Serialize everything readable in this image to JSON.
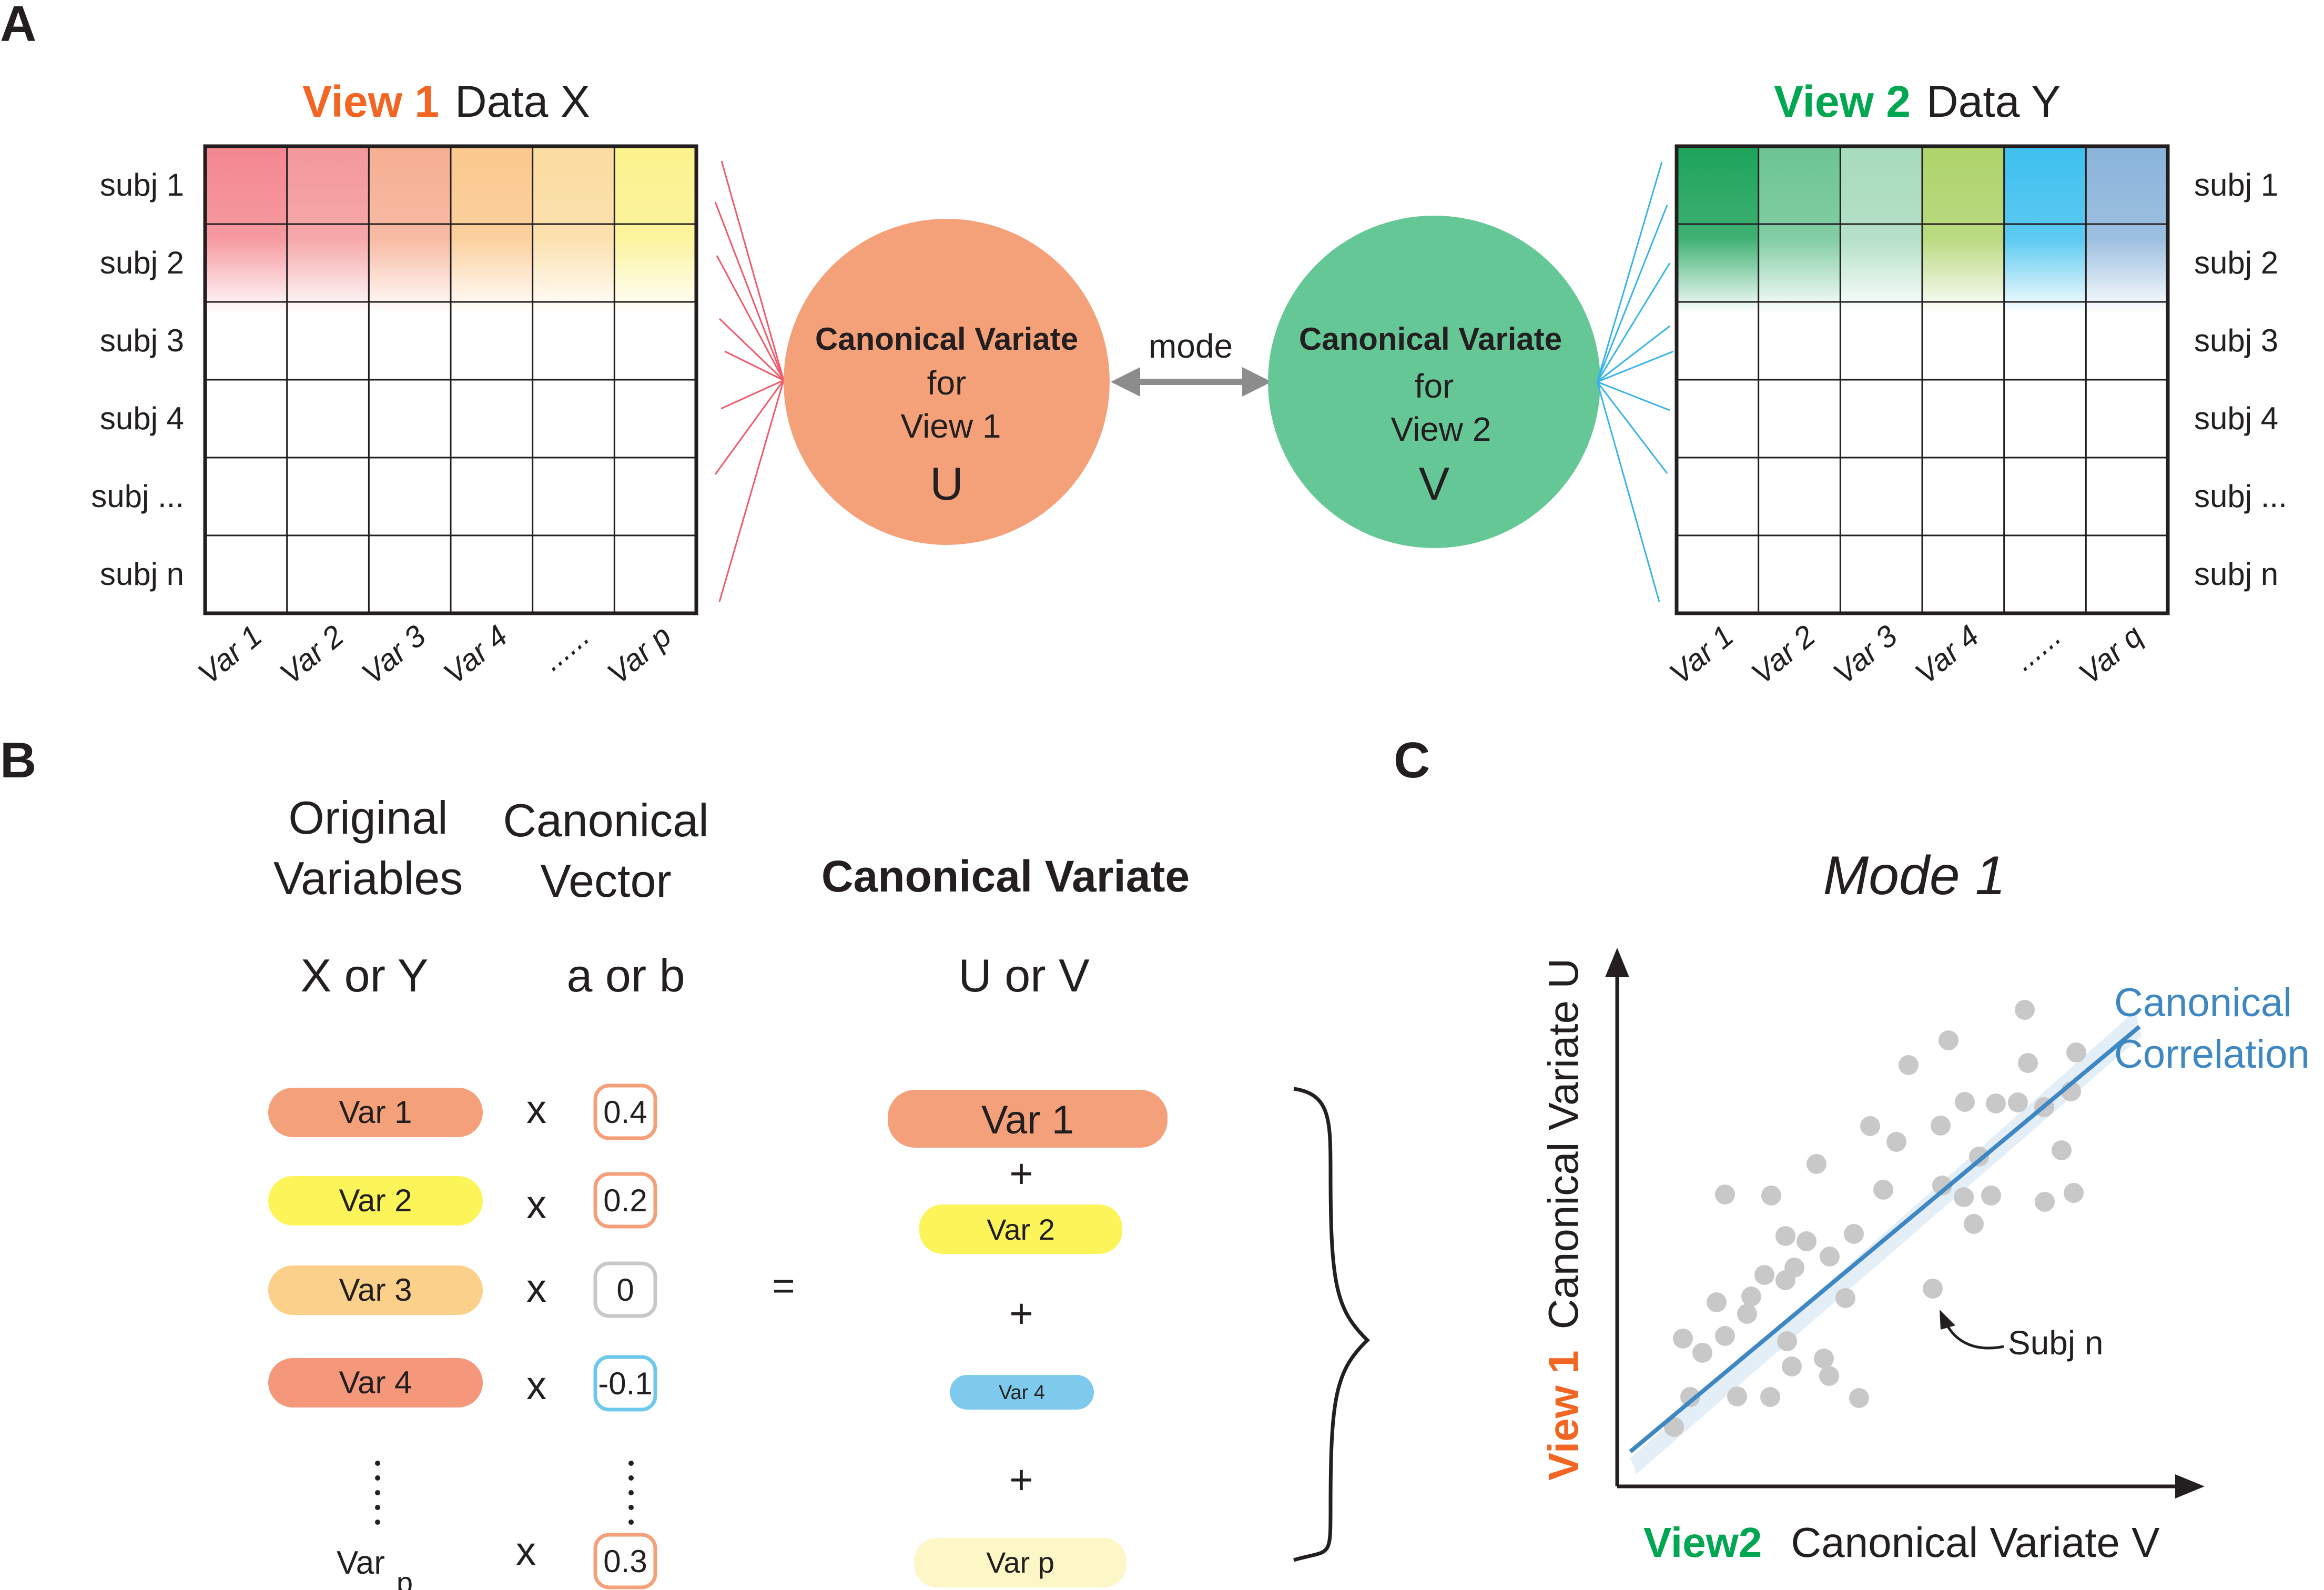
{
  "panels": {
    "a": "A",
    "b": "B",
    "c": "C"
  },
  "colors": {
    "view1": "#f26522",
    "view2": "#00a651",
    "circle_u": "#f4a17a",
    "circle_v": "#66c796",
    "pill_var1": "#f4a07a",
    "pill_var2": "#fbf55a",
    "pill_var3": "#fbd08a",
    "pill_var4": "#f4977a",
    "pill_var4_small": "#7dcaec",
    "pill_varp": "#fdf7c8",
    "reg_line": "#3e87c3",
    "points": "#c8c8c8",
    "arrow_grey": "#8c8c8c"
  },
  "panel_a": {
    "view1": {
      "view_label": "View 1",
      "data_label": "Data X",
      "rows": [
        "subj 1",
        "subj 2",
        "subj 3",
        "subj 4",
        "subj ...",
        "subj n"
      ],
      "cols": [
        "Var 1",
        "Var 2",
        "Var 3",
        "Var 4",
        "......",
        "Var p"
      ],
      "col_colors": [
        "#f4878f",
        "#f4989a",
        "#f6ae92",
        "#fbc88d",
        "#fbdca0",
        "#fbf28c"
      ]
    },
    "view2": {
      "view_label": "View 2",
      "data_label": "Data Y",
      "rows": [
        "subj 1",
        "subj 2",
        "subj 3",
        "subj 4",
        "subj ...",
        "subj n"
      ],
      "cols": [
        "Var 1",
        "Var 2",
        "Var 3",
        "Var 4",
        "......",
        "Var q"
      ],
      "col_colors": [
        "#1da35a",
        "#6cc493",
        "#a7dbbd",
        "#aed36a",
        "#3ec0ef",
        "#8ab4da"
      ]
    },
    "circle_u": {
      "title": "Canonical Variate",
      "line2": "for",
      "line3": "View 1",
      "letter": "U"
    },
    "circle_v": {
      "title": "Canonical Variate",
      "line2": "for",
      "line3": "View 2",
      "letter": "V"
    },
    "mode_label": "mode"
  },
  "panel_b": {
    "col1_l1": "Original",
    "col1_l2": "Variables",
    "col2_l1": "Canonical",
    "col2_l2": "Vector",
    "col3": "Canonical Variate",
    "sub1": "X or Y",
    "sub2": "a or b",
    "sub3": "U or V",
    "rows": [
      {
        "var": "Var 1",
        "times": "x",
        "coef": "0.4",
        "coef_border": "#f4a07a"
      },
      {
        "var": "Var 2",
        "times": "x",
        "coef": "0.2",
        "coef_border": "#f4a07a"
      },
      {
        "var": "Var 3",
        "times": "x",
        "coef": "0",
        "coef_border": "#c8c8c8"
      },
      {
        "var": "Var 4",
        "times": "x",
        "coef": "-0.1",
        "coef_border": "#6ec8ec"
      },
      {
        "var": "Var",
        "var_sub": "p",
        "times": "x",
        "coef": "0.3",
        "coef_border": "#f4a07a"
      }
    ],
    "equals": "=",
    "result": [
      {
        "label": "Var 1"
      },
      {
        "label": "Var 2"
      },
      {
        "label": "Var 4"
      },
      {
        "label": "Var p"
      }
    ],
    "plus": "+"
  },
  "panel_c": {
    "title": "Mode 1",
    "y_view": "View 1",
    "y_label": "Canonical Variate U",
    "x_view": "View2",
    "x_label": "Canonical Variate V",
    "cc_line1": "Canonical",
    "cc_line2": "Correlation",
    "annotation": "Subj n"
  }
}
